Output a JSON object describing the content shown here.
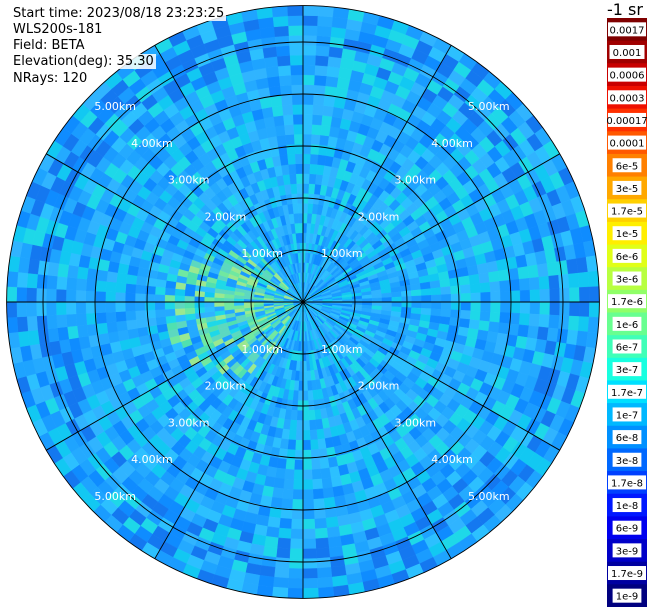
{
  "header": {
    "start_time": "Start time: 2023/08/18 23:23:25",
    "instrument": "WLS200s-181",
    "field": "Field: BETA",
    "elevation": "Elevation(deg): 35.30",
    "nrays": "NRays: 120"
  },
  "colorbar": {
    "unit": "-1 sr",
    "labels": [
      "0.0017",
      "0.001",
      "0.0006",
      "0.0003",
      "0.00017",
      "0.0001",
      "6e-5",
      "3e-5",
      "1.7e-5",
      "1e-5",
      "6e-6",
      "3e-6",
      "1.7e-6",
      "1e-6",
      "6e-7",
      "3e-7",
      "1.7e-7",
      "1e-7",
      "6e-8",
      "3e-8",
      "1.7e-8",
      "1e-8",
      "6e-9",
      "3e-9",
      "1.7e-9",
      "1e-9"
    ],
    "colors": [
      "#7f0000",
      "#a00000",
      "#c80000",
      "#ee1000",
      "#ff3000",
      "#ff5800",
      "#ff8000",
      "#ffa800",
      "#ffd000",
      "#ffee00",
      "#e0ff18",
      "#b8ff40",
      "#90ff68",
      "#68ff90",
      "#40ffb8",
      "#18ffe0",
      "#00e0ff",
      "#00b8ff",
      "#0090ff",
      "#0068ff",
      "#0040ff",
      "#0018ff",
      "#0000ee",
      "#0000c8",
      "#0000a0",
      "#00007f"
    ]
  },
  "chart_data": {
    "type": "heatmap",
    "projection": "polar PPI",
    "nrays": 120,
    "field": "BETA",
    "elevation_deg": 35.3,
    "range_unit": "km",
    "max_range_km": 5.7,
    "range_rings_km": [
      1,
      2,
      3,
      4,
      5
    ],
    "ring_labels": [
      "1.00km",
      "2.00km",
      "3.00km",
      "4.00km",
      "5.00km"
    ],
    "spoke_angles_deg": [
      0,
      30,
      60,
      90,
      120,
      150,
      180,
      210,
      240,
      270,
      300,
      330
    ],
    "colorscale": "jet, log scale, 1e-9 to 0.0017 sr-1",
    "dominant_level": "1e-7 to 6e-7",
    "enhanced_region": "west of center, about 1-2 km, up to about 1.7e-6"
  }
}
